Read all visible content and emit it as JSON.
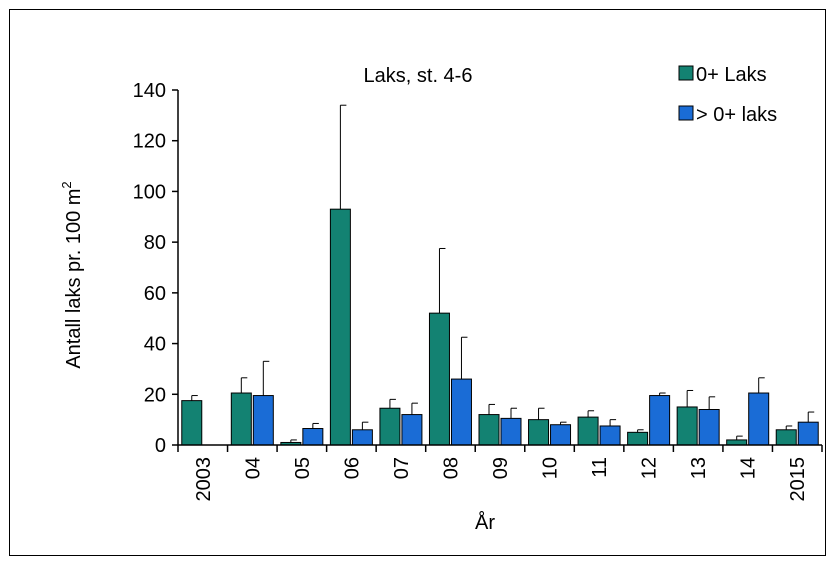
{
  "chart_data": {
    "type": "bar",
    "title": "Laks, st. 4-6",
    "xlabel": "År",
    "ylabel": "Antall laks pr. 100 m",
    "ylabel_superscript": "2",
    "ylim": [
      0,
      140
    ],
    "yticks": [
      "0",
      "20",
      "40",
      "60",
      "80",
      "100",
      "120",
      "140"
    ],
    "categories": [
      "2003",
      "04",
      "05",
      "06",
      "07",
      "08",
      "09",
      "10",
      "11",
      "12",
      "13",
      "14",
      "2015"
    ],
    "legend_position": "top-right",
    "series": [
      {
        "name": "0+ Laks",
        "color": "#138272",
        "values": [
          17.5,
          20.5,
          1,
          93,
          14.5,
          52,
          12,
          10,
          11,
          5,
          15,
          2,
          6
        ],
        "errors": [
          2,
          6,
          1,
          41,
          3.5,
          25.5,
          4,
          4.5,
          2.5,
          1,
          6.5,
          1.5,
          1.5
        ]
      },
      {
        "name": "> 0+ laks",
        "color": "#1A6CD6",
        "values": [
          null,
          19.5,
          6.5,
          6,
          12,
          26,
          10.5,
          8,
          7.5,
          19.5,
          14,
          20.5,
          9
        ],
        "errors": [
          null,
          13.5,
          2,
          3,
          4.5,
          16.5,
          4,
          1,
          2.5,
          1,
          5,
          6,
          4
        ]
      }
    ]
  }
}
